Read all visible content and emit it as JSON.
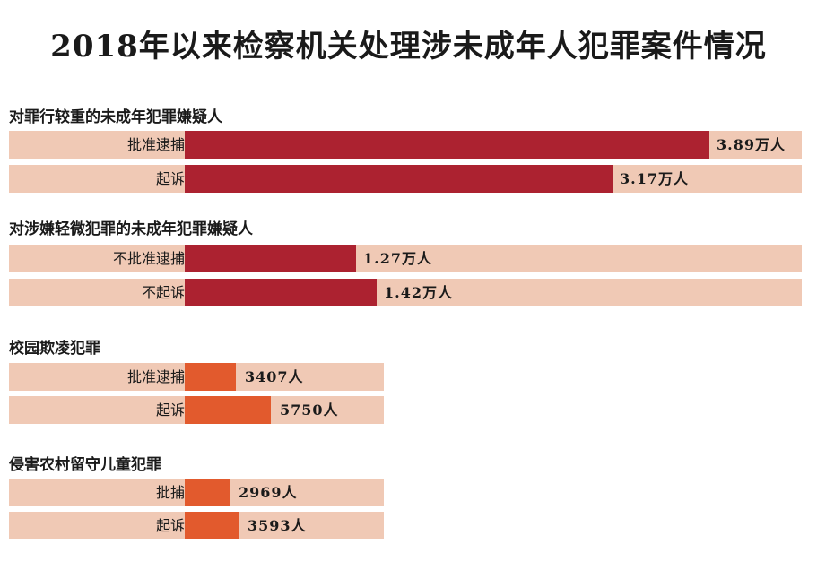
{
  "chart_data": {
    "type": "bar",
    "orientation": "horizontal",
    "title": "2018年以来检察机关处理涉未成年人犯罪案件情况",
    "colors": {
      "track": "#f0c9b5",
      "dark": "#ac2230",
      "orange": "#e25a2d"
    },
    "sections": [
      {
        "title": "对罪行较重的未成年犯罪嫌疑人",
        "unit": "万人",
        "scale_max": 3.89,
        "color": "#ac2230",
        "bars": [
          {
            "category": "批准逮捕",
            "value": 3.89,
            "label": "3.89万人"
          },
          {
            "category": "起诉",
            "value": 3.17,
            "label": "3.17万人"
          }
        ]
      },
      {
        "title": "对涉嫌轻微犯罪的未成年犯罪嫌疑人",
        "unit": "万人",
        "scale_max": 3.89,
        "color": "#ac2230",
        "bars": [
          {
            "category": "不批准逮捕",
            "value": 1.27,
            "label": "1.27万人"
          },
          {
            "category": "不起诉",
            "value": 1.42,
            "label": "1.42万人"
          }
        ]
      },
      {
        "title": "校园欺凌犯罪",
        "unit": "人",
        "scale_max": 38900,
        "color": "#e25a2d",
        "bars": [
          {
            "category": "批准逮捕",
            "value": 3407,
            "label": "3407人"
          },
          {
            "category": "起诉",
            "value": 5750,
            "label": "5750人"
          }
        ]
      },
      {
        "title": "侵害农村留守儿童犯罪",
        "unit": "人",
        "scale_max": 38900,
        "color": "#e25a2d",
        "bars": [
          {
            "category": "批捕",
            "value": 2969,
            "label": "2969人"
          },
          {
            "category": "起诉",
            "value": 3593,
            "label": "3593人"
          }
        ]
      }
    ]
  }
}
